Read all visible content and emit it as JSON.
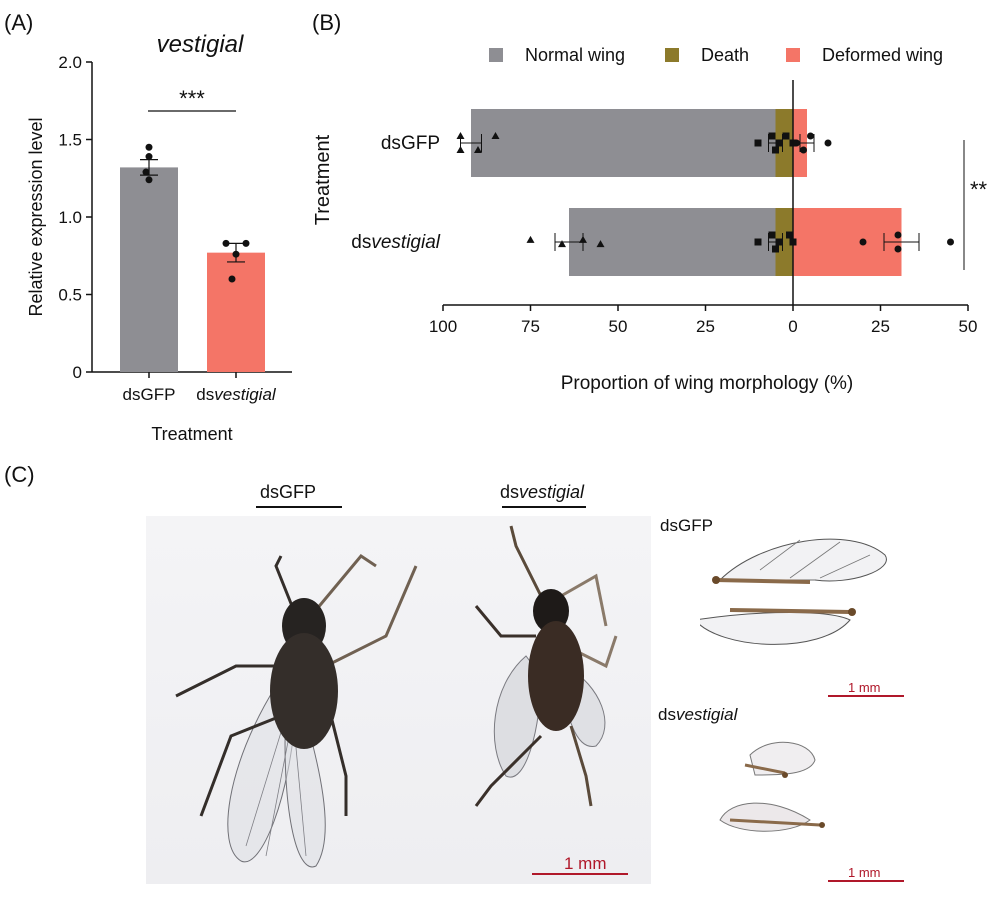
{
  "panels": {
    "a_label": "(A)",
    "b_label": "(B)",
    "c_label": "(C)"
  },
  "chart_data": [
    {
      "type": "bar",
      "panel": "(A)",
      "title": "vestigial",
      "xlabel": "Treatment",
      "ylabel": "Relative expression level",
      "ylim": [
        0,
        2.0
      ],
      "yticks": [
        "0",
        "0.5",
        "1.0",
        "1.5",
        "2.0"
      ],
      "categories": [
        {
          "prefix": "ds",
          "italic": "",
          "full": "dsGFP"
        },
        {
          "prefix": "ds",
          "italic": "vestigial",
          "full": "dsvestigial"
        }
      ],
      "values": [
        1.32,
        0.77
      ],
      "errors": [
        0.05,
        0.06
      ],
      "points": [
        [
          1.45,
          1.39,
          1.29,
          1.24
        ],
        [
          0.83,
          0.83,
          0.76,
          0.6
        ]
      ],
      "colors": [
        "#8e8e93",
        "#f47567"
      ],
      "significance": "***"
    },
    {
      "type": "bar",
      "orientation": "horizontal-diverging",
      "panel": "(B)",
      "xlabel": "Proportion of wing morphology (%)",
      "ylabel": "Treatment",
      "xticks": [
        "100",
        "75",
        "50",
        "25",
        "0",
        "25",
        "50"
      ],
      "legend_position": "top",
      "categories": [
        {
          "prefix": "ds",
          "italic": "",
          "full": "dsGFP"
        },
        {
          "prefix": "ds",
          "italic": "vestigial",
          "full": "dsvestigial"
        }
      ],
      "series": [
        {
          "name": "Normal wing",
          "color": "#8e8e93",
          "values": [
            92,
            64
          ],
          "errors": [
            3,
            4
          ],
          "points": [
            [
              95,
              90,
              85,
              95
            ],
            [
              75,
              66,
              60,
              55
            ]
          ]
        },
        {
          "name": "Death",
          "color": "#8c7a2b",
          "values": [
            5,
            5
          ],
          "errors": [
            2,
            2
          ],
          "points": [
            [
              10,
              6,
              5,
              4,
              2,
              0
            ],
            [
              10,
              6,
              5,
              4,
              1,
              0
            ]
          ]
        },
        {
          "name": "Deformed wing",
          "color": "#f47567",
          "values": [
            4,
            31
          ],
          "errors": [
            2,
            5
          ],
          "points": [
            [
              10,
              5,
              3,
              1,
              0
            ],
            [
              45,
              30,
              30,
              20,
              0
            ]
          ]
        }
      ],
      "significance": "**"
    }
  ],
  "photos": {
    "left_label": {
      "prefix": "ds",
      "italic": "",
      "full": "dsGFP"
    },
    "right_label": {
      "prefix": "ds",
      "italic": "vestigial",
      "full": "dsvestigial"
    },
    "wings_top_label": {
      "prefix": "ds",
      "italic": "",
      "full": "dsGFP"
    },
    "wings_bottom_label": {
      "prefix": "ds",
      "italic": "vestigial",
      "full": "dsvestigial"
    },
    "scale_main": "1 mm",
    "scale_wing_top": "1 mm",
    "scale_wing_bottom": "1 mm"
  }
}
